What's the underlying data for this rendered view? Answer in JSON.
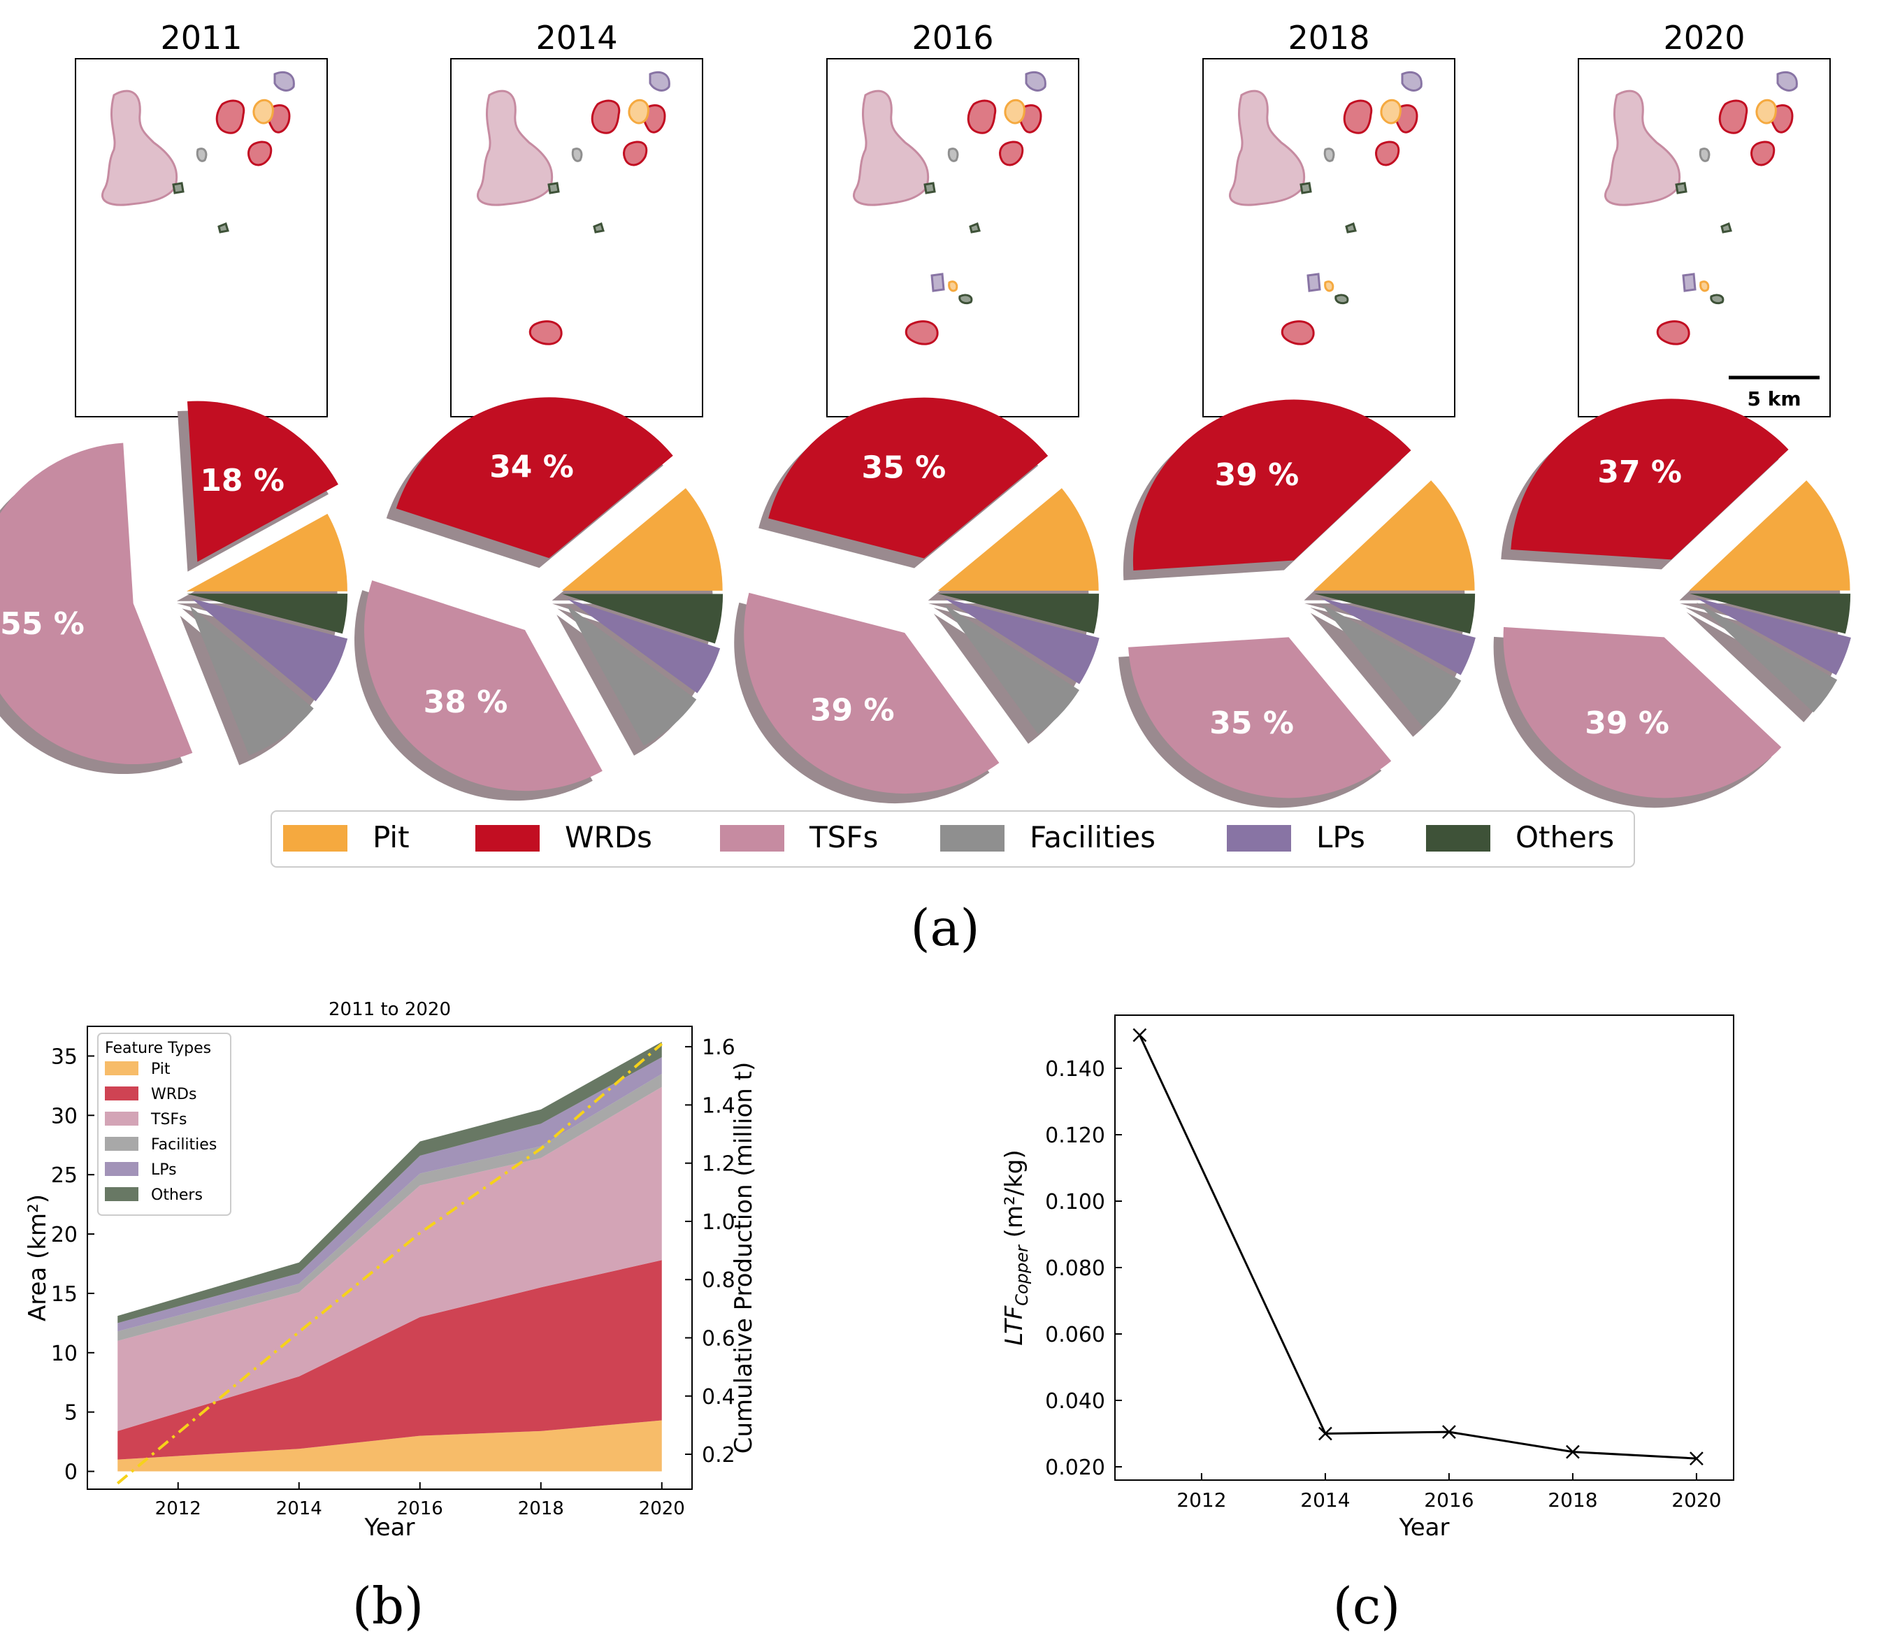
{
  "colors": {
    "Pit": "#F5A93F",
    "WRDs": "#C20E22",
    "TSFs": "#C68BA1",
    "Facilities": "#8F8F8F",
    "LPs": "#8874A4",
    "Others": "#3E5238",
    "shadow": "#9A8A8F",
    "line": "#000000",
    "production": "#F6D21A"
  },
  "panel_labels": {
    "a": "(a)",
    "b": "(b)",
    "c": "(c)"
  },
  "scale_bar": {
    "label": "5 km"
  },
  "legend": {
    "items": [
      {
        "label": "Pit",
        "key": "Pit"
      },
      {
        "label": "WRDs",
        "key": "WRDs"
      },
      {
        "label": "TSFs",
        "key": "TSFs"
      },
      {
        "label": "Facilities",
        "key": "Facilities"
      },
      {
        "label": "LPs",
        "key": "LPs"
      },
      {
        "label": "Others",
        "key": "Others"
      }
    ]
  },
  "chart_data": [
    {
      "type": "pie",
      "panel": "a",
      "categories": [
        "Pit",
        "WRDs",
        "TSFs",
        "Facilities",
        "LPs",
        "Others"
      ],
      "pies": [
        {
          "title": "2011",
          "values": [
            8,
            18,
            55,
            8,
            7,
            4
          ],
          "labels": [
            "",
            "18 %",
            "55 %",
            "",
            "",
            ""
          ]
        },
        {
          "title": "2014",
          "values": [
            11,
            34,
            38,
            7,
            5,
            5
          ],
          "labels": [
            "",
            "34 %",
            "38 %",
            "",
            "",
            ""
          ]
        },
        {
          "title": "2016",
          "values": [
            11,
            35,
            39,
            6,
            5,
            4
          ],
          "labels": [
            "",
            "35 %",
            "39 %",
            "",
            "",
            ""
          ]
        },
        {
          "title": "2018",
          "values": [
            12,
            39,
            35,
            6,
            4,
            4
          ],
          "labels": [
            "",
            "39 %",
            "35 %",
            "",
            "",
            ""
          ]
        },
        {
          "title": "2020",
          "values": [
            12,
            37,
            39,
            4,
            4,
            4
          ],
          "labels": [
            "",
            "37 %",
            "39 %",
            "",
            "",
            ""
          ]
        }
      ]
    },
    {
      "type": "area",
      "panel": "b",
      "title": "2011 to 2020",
      "xlabel": "Year",
      "ylabel": "Area (km²)",
      "ylabel2": "Cumulative Production (million t)",
      "x": [
        2011,
        2014,
        2016,
        2018,
        2020
      ],
      "xlim": [
        2010.5,
        2020.5
      ],
      "xticks": [
        2012,
        2014,
        2016,
        2018,
        2020
      ],
      "ylim": [
        -1.5,
        37.5
      ],
      "yticks": [
        0,
        5,
        10,
        15,
        20,
        25,
        30,
        35
      ],
      "y2lim": [
        0.08,
        1.67
      ],
      "y2ticks": [
        0.2,
        0.4,
        0.6,
        0.8,
        1.0,
        1.2,
        1.4,
        1.6
      ],
      "legend_title": "Feature Types",
      "series": [
        {
          "name": "Pit",
          "key": "Pit",
          "values": [
            1.0,
            1.9,
            3.0,
            3.4,
            4.3
          ]
        },
        {
          "name": "WRDs",
          "key": "WRDs",
          "values": [
            2.4,
            6.1,
            10.0,
            12.1,
            13.5
          ]
        },
        {
          "name": "TSFs",
          "key": "TSFs",
          "values": [
            7.6,
            7.1,
            11.1,
            10.9,
            14.6
          ]
        },
        {
          "name": "Facilities",
          "key": "Facilities",
          "values": [
            0.8,
            0.7,
            1.0,
            1.0,
            1.1
          ]
        },
        {
          "name": "LPs",
          "key": "LPs",
          "values": [
            0.7,
            0.9,
            1.5,
            1.9,
            1.4
          ]
        },
        {
          "name": "Others",
          "key": "Others",
          "values": [
            0.6,
            0.9,
            1.2,
            1.2,
            1.3
          ]
        }
      ],
      "production": {
        "name": "Cumulative Production",
        "values": [
          0.1,
          0.62,
          0.96,
          1.25,
          1.61
        ]
      }
    },
    {
      "type": "line",
      "panel": "c",
      "title": "",
      "xlabel": "Year",
      "ylabel_main": "LTF",
      "ylabel_sub": "Copper",
      "ylabel_unit": " (m²/kg)",
      "x": [
        2011,
        2014,
        2016,
        2018,
        2020
      ],
      "xlim": [
        2010.6,
        2020.6
      ],
      "xticks": [
        2012,
        2014,
        2016,
        2018,
        2020
      ],
      "ylim": [
        0.016,
        0.156
      ],
      "yticks": [
        0.02,
        0.04,
        0.06,
        0.08,
        0.1,
        0.12,
        0.14
      ],
      "ytick_labels": [
        "0.020",
        "0.040",
        "0.060",
        "0.080",
        "0.100",
        "0.120",
        "0.140"
      ],
      "values": [
        0.15,
        0.03,
        0.0305,
        0.0245,
        0.0225
      ]
    }
  ]
}
